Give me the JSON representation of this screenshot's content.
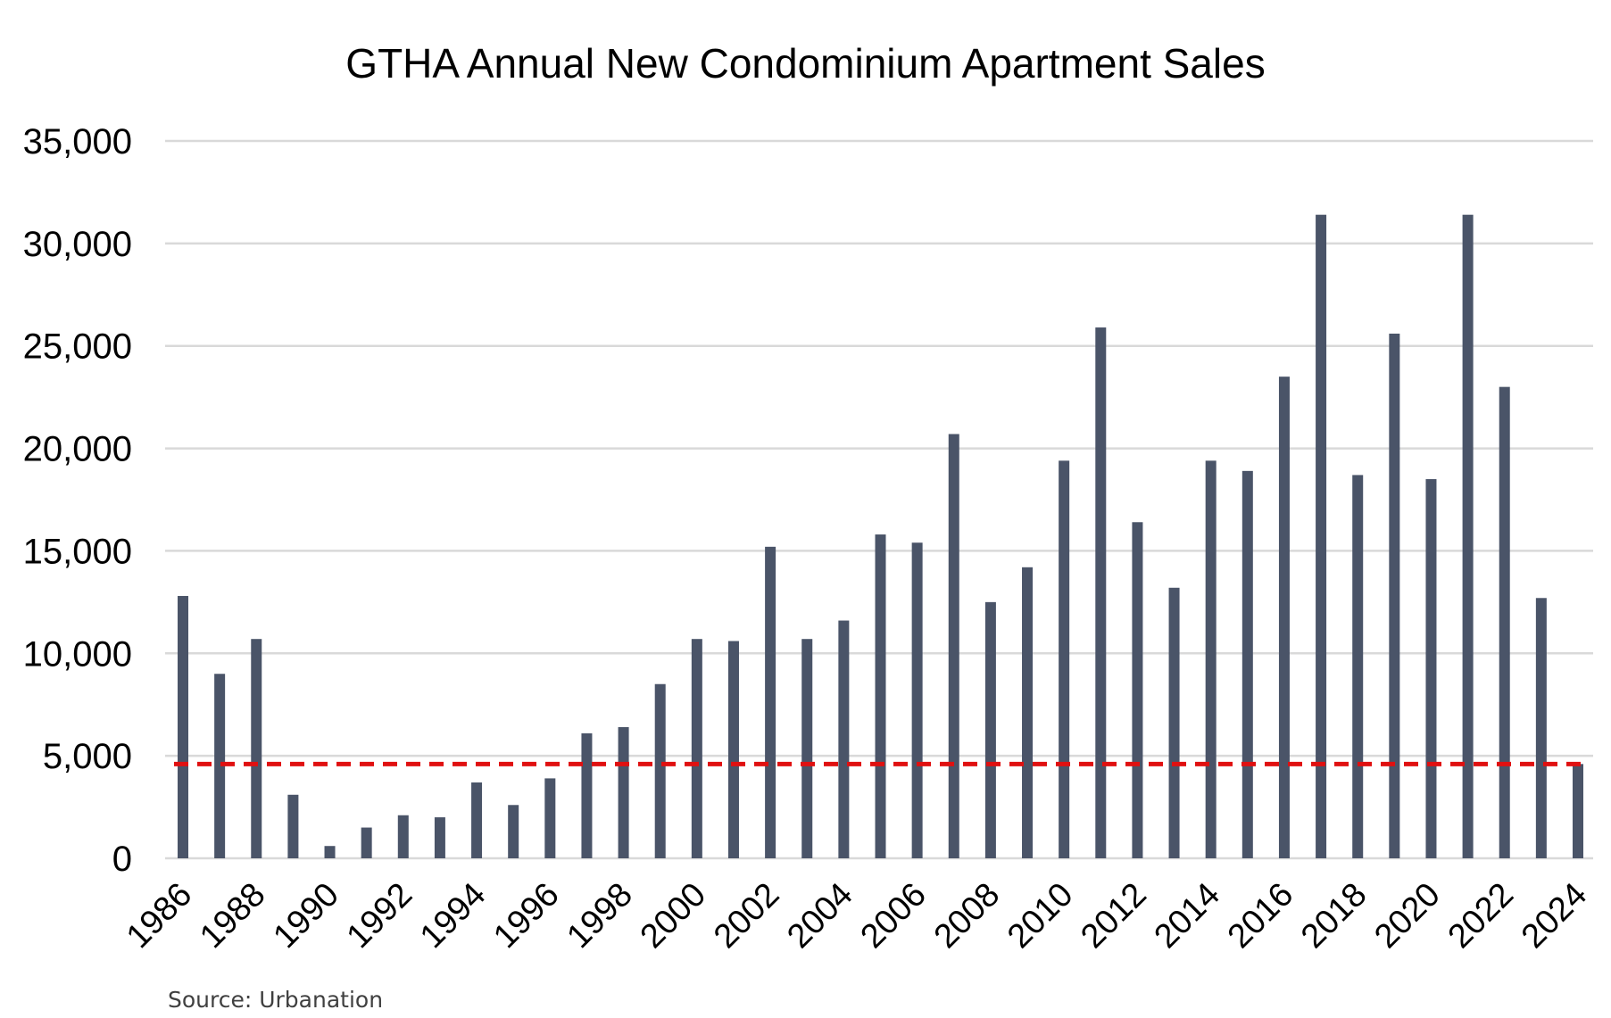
{
  "chart_data": {
    "type": "bar",
    "title": "GTHA Annual New Condominium Apartment Sales",
    "source": "Source: Urbanation",
    "xlabel": "",
    "ylabel": "",
    "ylim": [
      0,
      35000
    ],
    "yticks": [
      "0",
      "5,000",
      "10,000",
      "15,000",
      "20,000",
      "25,000",
      "30,000",
      "35,000"
    ],
    "ytick_values": [
      0,
      5000,
      10000,
      15000,
      20000,
      25000,
      30000,
      35000
    ],
    "xtick_labels": [
      "1986",
      "1988",
      "1990",
      "1992",
      "1994",
      "1996",
      "1998",
      "2000",
      "2002",
      "2004",
      "2006",
      "2008",
      "2010",
      "2012",
      "2014",
      "2016",
      "2018",
      "2020",
      "2022",
      "2024"
    ],
    "categories": [
      1986,
      1987,
      1988,
      1989,
      1990,
      1991,
      1992,
      1993,
      1994,
      1995,
      1996,
      1997,
      1998,
      1999,
      2000,
      2001,
      2002,
      2003,
      2004,
      2005,
      2006,
      2007,
      2008,
      2009,
      2010,
      2011,
      2012,
      2013,
      2014,
      2015,
      2016,
      2017,
      2018,
      2019,
      2020,
      2021,
      2022,
      2023,
      2024
    ],
    "values": [
      12800,
      9000,
      10700,
      3100,
      600,
      1500,
      2100,
      2000,
      3700,
      2600,
      3900,
      6100,
      6400,
      8500,
      10700,
      10600,
      15200,
      10700,
      11600,
      15800,
      15400,
      20700,
      12500,
      14200,
      19400,
      25900,
      16400,
      13200,
      19400,
      18900,
      23500,
      31400,
      18700,
      25600,
      18500,
      31400,
      23000,
      12700,
      4600
    ],
    "reference_line": {
      "value": 4600,
      "style": "dashed"
    },
    "grid": true,
    "legend": "none",
    "colors": {
      "bar": "#4a5468",
      "reference_line": "#e01010",
      "grid": "#d9d9d9"
    }
  }
}
